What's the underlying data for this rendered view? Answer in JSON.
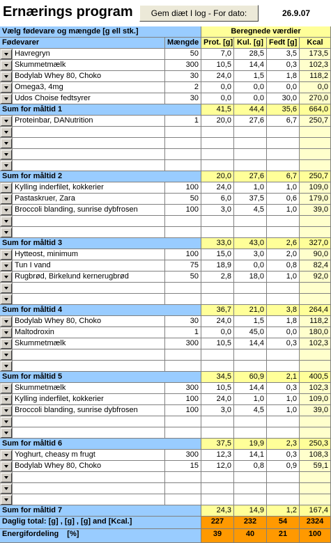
{
  "header": {
    "title": "Ernærings program",
    "button": "Gem diæt I log - For dato:",
    "date": "26.9.07"
  },
  "table": {
    "group_left": "Vælg fødevare og mængde [g ell stk.]",
    "group_right": "Beregnede værdier",
    "columns": [
      "Fødevarer",
      "Mængde",
      "Prot. [g]",
      "Kul. [g]",
      "Fedt [g]",
      "Kcal"
    ],
    "meals": [
      {
        "items": [
          [
            "Havregryn",
            "50",
            "7,0",
            "28,5",
            "3,5",
            "173,5"
          ],
          [
            "Skummetmælk",
            "300",
            "10,5",
            "14,4",
            "0,3",
            "102,3"
          ],
          [
            "Bodylab Whey 80, Choko",
            "30",
            "24,0",
            "1,5",
            "1,8",
            "118,2"
          ],
          [
            "Omega3, 4mg",
            "2",
            "0,0",
            "0,0",
            "0,0",
            "0,0"
          ],
          [
            "Udos Choise fedtsyrer",
            "30",
            "0,0",
            "0,0",
            "30,0",
            "270,0"
          ]
        ],
        "sum_label": "Sum for måltid 1",
        "sum": [
          "41,5",
          "44,4",
          "35,6",
          "664,0"
        ]
      },
      {
        "items": [
          [
            "Proteinbar, DANutrition",
            "1",
            "20,0",
            "27,6",
            "6,7",
            "250,7"
          ]
        ],
        "sum_label": "Sum for måltid 2",
        "sum": [
          "20,0",
          "27,6",
          "6,7",
          "250,7"
        ]
      },
      {
        "items": [
          [
            "Kylling inderfilet, kokkerier",
            "100",
            "24,0",
            "1,0",
            "1,0",
            "109,0"
          ],
          [
            "Pastaskruer, Zara",
            "50",
            "6,0",
            "37,5",
            "0,6",
            "179,0"
          ],
          [
            "Broccoli blanding, sunrise dybfrosen",
            "100",
            "3,0",
            "4,5",
            "1,0",
            "39,0"
          ]
        ],
        "sum_label": "Sum for måltid 3",
        "sum": [
          "33,0",
          "43,0",
          "2,6",
          "327,0"
        ]
      },
      {
        "items": [
          [
            "Hytteost, minimum",
            "100",
            "15,0",
            "3,0",
            "2,0",
            "90,0"
          ],
          [
            "Tun I vand",
            "75",
            "18,9",
            "0,0",
            "0,8",
            "82,4"
          ],
          [
            "Rugbrød, Birkelund kernerugbrød",
            "50",
            "2,8",
            "18,0",
            "1,0",
            "92,0"
          ]
        ],
        "sum_label": "Sum for måltid 4",
        "sum": [
          "36,7",
          "21,0",
          "3,8",
          "264,4"
        ]
      },
      {
        "items": [
          [
            "Bodylab Whey 80, Choko",
            "30",
            "24,0",
            "1,5",
            "1,8",
            "118,2"
          ],
          [
            "Maltodroxin",
            "1",
            "0,0",
            "45,0",
            "0,0",
            "180,0"
          ],
          [
            "Skummetmælk",
            "300",
            "10,5",
            "14,4",
            "0,3",
            "102,3"
          ]
        ],
        "sum_label": "Sum for måltid 5",
        "sum": [
          "34,5",
          "60,9",
          "2,1",
          "400,5"
        ]
      },
      {
        "items": [
          [
            "Skummetmælk",
            "300",
            "10,5",
            "14,4",
            "0,3",
            "102,3"
          ],
          [
            "Kylling inderfilet, kokkerier",
            "100",
            "24,0",
            "1,0",
            "1,0",
            "109,0"
          ],
          [
            "Broccoli blanding, sunrise dybfrosen",
            "100",
            "3,0",
            "4,5",
            "1,0",
            "39,0"
          ]
        ],
        "sum_label": "Sum for måltid 6",
        "sum": [
          "37,5",
          "19,9",
          "2,3",
          "250,3"
        ]
      },
      {
        "items": [
          [
            "Yoghurt, cheasy m frugt",
            "300",
            "12,3",
            "14,1",
            "0,3",
            "108,3"
          ],
          [
            "Bodylab Whey 80, Choko",
            "15",
            "12,0",
            "0,8",
            "0,9",
            "59,1"
          ]
        ],
        "sum_label": "Sum for måltid 7",
        "sum": [
          "24,3",
          "14,9",
          "1,2",
          "167,4"
        ]
      }
    ],
    "total": {
      "label": "Daglig total: [g] , [g] , [g] and [Kcal.]",
      "values": [
        "227",
        "232",
        "54",
        "2324"
      ]
    },
    "energy": {
      "label": "Energifordeling",
      "unit": "[%]",
      "values": [
        "39",
        "40",
        "21",
        "100"
      ]
    }
  }
}
